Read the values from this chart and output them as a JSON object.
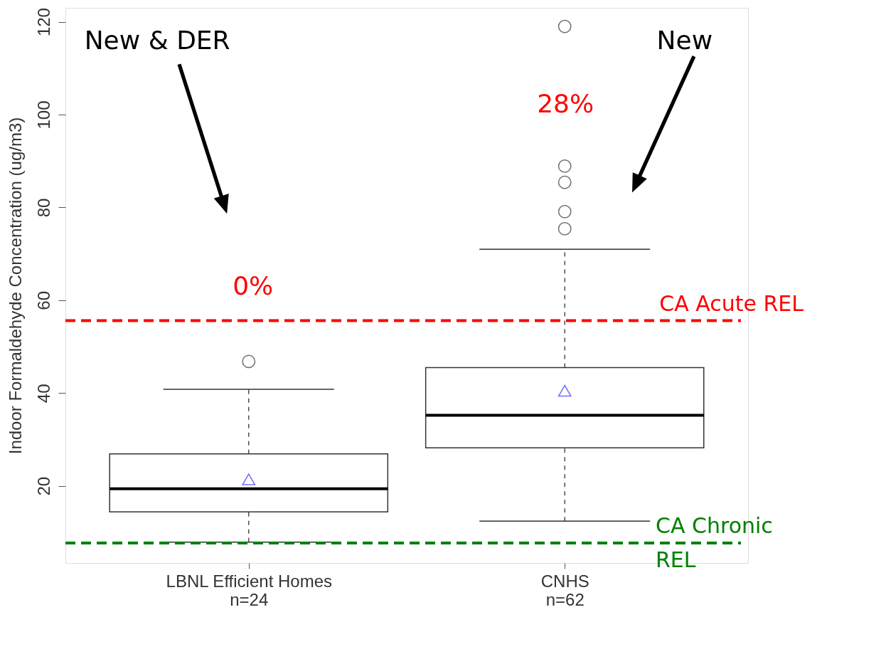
{
  "chart_data": {
    "type": "box",
    "ylabel": "Indoor Formaldehyde Concentration (ug/m3)",
    "categories": [
      "LBNL Efficient Homes\nn=24",
      "CNHS\nn=62"
    ],
    "boxes": [
      {
        "low": 7.9,
        "q1": 14.4,
        "median": 19.4,
        "q3": 26.9,
        "high": 40.8,
        "mean": 21.4,
        "outliers": [
          46.8
        ]
      },
      {
        "low": 12.4,
        "q1": 28.2,
        "median": 35.2,
        "q3": 45.5,
        "high": 71.0,
        "mean": 40.5,
        "outliers": [
          75.4,
          79.1,
          85.4,
          88.9,
          119.0
        ]
      }
    ],
    "ylim": [
      3.4,
      123.0
    ],
    "yticks": [
      20,
      40,
      60,
      80,
      100,
      120
    ],
    "grid": false,
    "ref_lines": [
      {
        "axis": "y",
        "value": 55.6,
        "label": "CA Acute REL",
        "color": "#ff0000",
        "line_style": "dashed"
      },
      {
        "axis": "y",
        "value": 7.7,
        "label": "CA Chronic REL",
        "color": "#008000",
        "line_style": "dashed"
      }
    ],
    "annotations": [
      "New & DER",
      "New",
      "0%",
      "28%"
    ]
  }
}
